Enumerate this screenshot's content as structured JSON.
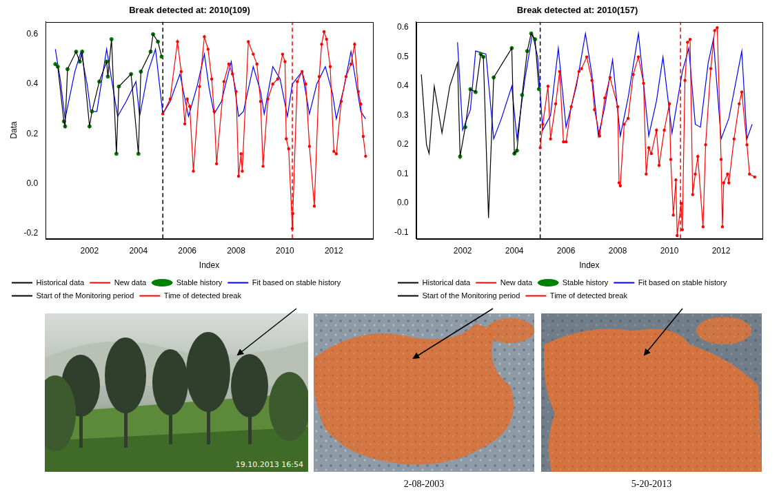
{
  "chart_data": [
    {
      "type": "line",
      "title": "Break detected at: 2010(109)",
      "x_label": "Index",
      "y_label": "Data",
      "xlim": [
        2000.2,
        2013.6
      ],
      "xticks": [
        2002,
        2004,
        2006,
        2008,
        2010,
        2012
      ],
      "ylim": [
        -0.22,
        0.65
      ],
      "yticks": [
        -0.2,
        {
          "value": 0,
          "label": "0.0"
        },
        0.2,
        0.4,
        0.6
      ],
      "grid": false,
      "legend": "bottom",
      "series": [
        {
          "name": "Historical data",
          "type": "line",
          "color": "#000000",
          "line_style": "solid",
          "x": [
            2000.6,
            2000.7,
            2000.95,
            2001.0,
            2001.1,
            2001.45,
            2001.6,
            2001.7,
            2002.0,
            2002.1,
            2002.4,
            2002.7,
            2002.75,
            2002.9,
            2003.1,
            2003.2,
            2003.7,
            2004.0,
            2004.1,
            2004.5,
            2004.6,
            2004.8,
            2004.95
          ],
          "values": [
            0.48,
            0.47,
            0.25,
            0.23,
            0.46,
            0.53,
            0.49,
            0.53,
            0.23,
            0.29,
            0.41,
            0.49,
            0.43,
            0.58,
            0.12,
            0.39,
            0.44,
            0.12,
            0.45,
            0.53,
            0.6,
            0.57,
            0.51
          ]
        },
        {
          "name": "New data",
          "type": "line",
          "color": "#ff0000",
          "line_style": "solid",
          "marker": "circle",
          "x": [
            2005.0,
            2005.3,
            2005.6,
            2005.75,
            2005.9,
            2006.0,
            2006.1,
            2006.25,
            2006.5,
            2006.7,
            2006.85,
            2007.0,
            2007.1,
            2007.2,
            2007.5,
            2007.7,
            2007.85,
            2008.0,
            2008.1,
            2008.2,
            2008.25,
            2008.5,
            2008.7,
            2008.85,
            2009.0,
            2009.1,
            2009.3,
            2009.5,
            2009.7,
            2009.9,
            2010.0,
            2010.05,
            2010.15,
            2010.3,
            2010.32,
            2010.5,
            2010.7,
            2010.85,
            2011.0,
            2011.2,
            2011.4,
            2011.5,
            2011.6,
            2011.7,
            2011.85,
            2012.0,
            2012.1,
            2012.3,
            2012.5,
            2012.7,
            2012.85,
            2013.0,
            2013.1,
            2013.2,
            2013.3
          ],
          "values": [
            0.28,
            0.34,
            0.57,
            0.45,
            0.24,
            0.34,
            0.31,
            0.05,
            0.39,
            0.59,
            0.54,
            0.42,
            0.29,
            0.08,
            0.41,
            0.48,
            0.44,
            0.37,
            0.03,
            0.12,
            0.05,
            0.57,
            0.52,
            0.48,
            0.33,
            0.07,
            0.34,
            0.4,
            0.42,
            0.52,
            0.49,
            0.18,
            0.14,
            -0.18,
            -0.12,
            0.41,
            0.45,
            0.4,
            0.15,
            -0.09,
            0.43,
            0.56,
            0.61,
            0.58,
            0.47,
            0.13,
            0.12,
            0.33,
            0.43,
            0.48,
            0.56,
            0.37,
            0.32,
            0.19,
            0.11
          ]
        },
        {
          "name": "Stable history",
          "type": "scatter",
          "color": "#008000",
          "marker": "circle",
          "x": [
            2000.6,
            2000.7,
            2000.95,
            2001.0,
            2001.1,
            2001.45,
            2001.6,
            2001.7,
            2002.0,
            2002.1,
            2002.4,
            2002.7,
            2002.75,
            2002.9,
            2003.1,
            2003.2,
            2003.7,
            2004.0,
            2004.1,
            2004.5,
            2004.6,
            2004.8,
            2004.95
          ],
          "values": [
            0.48,
            0.47,
            0.25,
            0.23,
            0.46,
            0.53,
            0.49,
            0.53,
            0.23,
            0.29,
            0.41,
            0.49,
            0.43,
            0.58,
            0.12,
            0.39,
            0.44,
            0.12,
            0.45,
            0.53,
            0.6,
            0.57,
            0.51
          ]
        },
        {
          "name": "Fit based on stable history",
          "type": "line",
          "color": "#0000ff",
          "line_style": "solid",
          "x": [
            2000.6,
            2000.8,
            2001.0,
            2001.4,
            2001.65,
            2001.9,
            2002.05,
            2002.3,
            2002.7,
            2003.0,
            2003.15,
            2003.5,
            2003.9,
            2004.05,
            2004.4,
            2004.7,
            2005.0,
            2005.3,
            2005.7,
            2006.05,
            2006.4,
            2006.7,
            2006.9,
            2007.1,
            2007.4,
            2007.8,
            2008.1,
            2008.3,
            2008.7,
            2009.0,
            2009.15,
            2009.5,
            2009.8,
            2010.1,
            2010.3,
            2010.7,
            2011.0,
            2011.3,
            2011.65,
            2011.95,
            2012.1,
            2012.4,
            2012.7,
            2013.1,
            2013.3
          ],
          "values": [
            0.54,
            0.42,
            0.26,
            0.45,
            0.53,
            0.4,
            0.29,
            0.29,
            0.54,
            0.36,
            0.27,
            0.33,
            0.41,
            0.27,
            0.45,
            0.54,
            0.28,
            0.33,
            0.44,
            0.27,
            0.39,
            0.52,
            0.38,
            0.28,
            0.33,
            0.49,
            0.27,
            0.29,
            0.47,
            0.37,
            0.28,
            0.47,
            0.42,
            0.27,
            0.4,
            0.45,
            0.28,
            0.4,
            0.47,
            0.36,
            0.26,
            0.38,
            0.53,
            0.29,
            0.26
          ]
        },
        {
          "name": "Start of the Monitoring period",
          "type": "vline",
          "color": "#000000",
          "line_style": "dashed",
          "x": [
            2005.0
          ]
        },
        {
          "name": "Time of detected break",
          "type": "vline",
          "color": "#ff0000",
          "line_style": "dashed",
          "x": [
            2010.3
          ]
        }
      ]
    },
    {
      "type": "line",
      "title": "Break detected at: 2010(157)",
      "x_label": "Index",
      "xlim": [
        2000.2,
        2013.6
      ],
      "xticks": [
        2002,
        2004,
        2006,
        2008,
        2010,
        2012
      ],
      "ylim": [
        -0.12,
        0.62
      ],
      "yticks": [
        -0.1,
        {
          "value": 0,
          "label": "0.0"
        },
        0.1,
        0.2,
        0.3,
        0.4,
        0.5,
        0.6
      ],
      "grid": false,
      "legend": "bottom",
      "series": [
        {
          "name": "Historical data",
          "type": "line",
          "color": "#000000",
          "line_style": "solid",
          "x": [
            2000.4,
            2000.6,
            2000.7,
            2000.9,
            2001.2,
            2001.5,
            2001.8,
            2001.9,
            2002.1,
            2002.3,
            2002.5,
            2002.7,
            2002.8,
            2003.0,
            2003.2,
            2003.9,
            2004.0,
            2004.1,
            2004.3,
            2004.5,
            2004.65,
            2004.8,
            2004.95
          ],
          "values": [
            0.44,
            0.2,
            0.17,
            0.4,
            0.24,
            0.4,
            0.48,
            0.16,
            0.26,
            0.39,
            0.38,
            0.51,
            0.5,
            -0.05,
            0.43,
            0.53,
            0.17,
            0.18,
            0.37,
            0.52,
            0.58,
            0.56,
            0.39
          ]
        },
        {
          "name": "New data",
          "type": "line",
          "color": "#ff0000",
          "line_style": "solid",
          "marker": "circle",
          "x": [
            2005.0,
            2005.1,
            2005.3,
            2005.4,
            2005.6,
            2005.75,
            2005.9,
            2006.0,
            2006.2,
            2006.5,
            2006.6,
            2006.8,
            2007.0,
            2007.1,
            2007.3,
            2007.5,
            2007.7,
            2008.0,
            2008.05,
            2008.1,
            2008.25,
            2008.4,
            2008.6,
            2008.8,
            2009.0,
            2009.1,
            2009.2,
            2009.3,
            2009.5,
            2009.6,
            2009.8,
            2010.0,
            2010.05,
            2010.15,
            2010.25,
            2010.3,
            2010.45,
            2010.5,
            2010.6,
            2010.7,
            2010.8,
            2010.9,
            2011.0,
            2011.1,
            2011.3,
            2011.4,
            2011.6,
            2011.75,
            2011.85,
            2012.0,
            2012.05,
            2012.1,
            2012.25,
            2012.3,
            2012.5,
            2012.7,
            2012.8,
            2013.0,
            2013.1,
            2013.3
          ],
          "values": [
            0.19,
            0.27,
            0.4,
            0.22,
            0.34,
            0.45,
            0.21,
            0.21,
            0.33,
            0.45,
            0.46,
            0.5,
            0.42,
            0.32,
            0.23,
            0.36,
            0.43,
            0.33,
            0.07,
            0.06,
            0.27,
            0.29,
            0.44,
            0.5,
            0.41,
            0.1,
            0.19,
            0.17,
            0.25,
            0.13,
            0.25,
            0.34,
            0.15,
            -0.04,
            0.08,
            -0.11,
            0,
            -0.09,
            0.42,
            0.55,
            0.56,
            0.03,
            0.1,
            0.16,
            -0.08,
            0.2,
            0.46,
            0.59,
            0.6,
            0.15,
            -0.08,
            0.07,
            0.1,
            0.07,
            0.22,
            0.34,
            0.38,
            0.2,
            0.1,
            0.09
          ]
        },
        {
          "name": "Stable history",
          "type": "scatter",
          "color": "#008000",
          "marker": "circle",
          "x": [
            2001.9,
            2002.1,
            2002.3,
            2002.5,
            2002.7,
            2002.8,
            2003.2,
            2003.9,
            2004.0,
            2004.1,
            2004.3,
            2004.5,
            2004.65,
            2004.8,
            2004.95
          ],
          "values": [
            0.16,
            0.26,
            0.39,
            0.38,
            0.51,
            0.5,
            0.43,
            0.53,
            0.17,
            0.18,
            0.37,
            0.52,
            0.58,
            0.56,
            0.39
          ]
        },
        {
          "name": "Fit based on stable history",
          "type": "line",
          "color": "#0000ff",
          "line_style": "solid",
          "x": [
            2001.8,
            2002.0,
            2002.3,
            2002.5,
            2002.9,
            2003.2,
            2003.5,
            2003.9,
            2004.1,
            2004.4,
            2004.7,
            2004.9,
            2005.1,
            2005.4,
            2005.7,
            2006.0,
            2006.4,
            2006.75,
            2007.0,
            2007.25,
            2007.5,
            2007.8,
            2008.1,
            2008.4,
            2008.8,
            2009.0,
            2009.2,
            2009.5,
            2009.75,
            2010.1,
            2010.5,
            2010.75,
            2011.0,
            2011.2,
            2011.5,
            2011.7,
            2012.0,
            2012.3,
            2012.8,
            2013.0,
            2013.2
          ],
          "values": [
            0.55,
            0.25,
            0.32,
            0.52,
            0.51,
            0.22,
            0.29,
            0.4,
            0.22,
            0.42,
            0.58,
            0.5,
            0.25,
            0.3,
            0.53,
            0.26,
            0.4,
            0.58,
            0.44,
            0.23,
            0.33,
            0.49,
            0.23,
            0.36,
            0.58,
            0.41,
            0.23,
            0.35,
            0.5,
            0.24,
            0.45,
            0.53,
            0.27,
            0.26,
            0.48,
            0.56,
            0.22,
            0.29,
            0.52,
            0.22,
            0.27
          ]
        },
        {
          "name": "Start of the Monitoring period",
          "type": "vline",
          "color": "#000000",
          "line_style": "dashed",
          "x": [
            2005.0
          ]
        },
        {
          "name": "Time of detected break",
          "type": "vline",
          "color": "#ff0000",
          "line_style": "dashed",
          "x": [
            2010.43
          ]
        }
      ]
    }
  ],
  "images": [
    {
      "timestamp": "19.10.2013 16:54"
    },
    {
      "caption": "2-08-2003"
    },
    {
      "caption": "5-20-2013"
    }
  ]
}
